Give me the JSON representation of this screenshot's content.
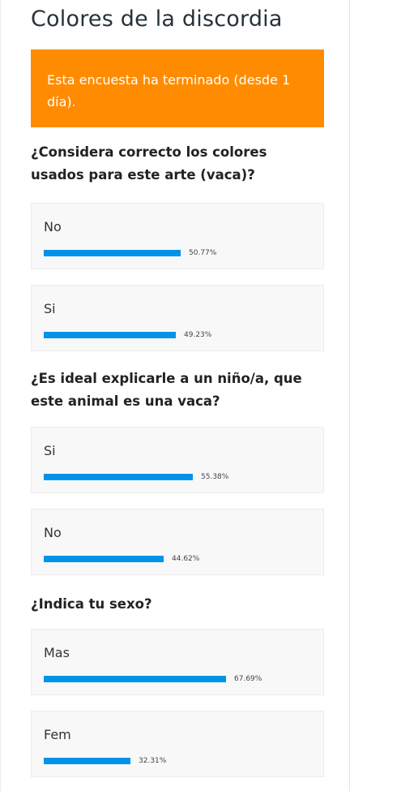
{
  "poll": {
    "title": "Colores de la discordia",
    "notice": "Esta encuesta ha terminado (desde 1 día).",
    "accent_color": "#ff8c00",
    "bar_color": "#0093e9"
  },
  "questions": [
    {
      "text": "¿Considera correcto los colores usados para este arte (vaca)?",
      "answers": [
        {
          "label": "No",
          "percent": 50.77,
          "percent_text": "50.77%"
        },
        {
          "label": "Si",
          "percent": 49.23,
          "percent_text": "49.23%"
        }
      ]
    },
    {
      "text": "¿Es ideal explicarle a un niño/a, que este animal es una vaca?",
      "answers": [
        {
          "label": "Si",
          "percent": 55.38,
          "percent_text": "55.38%"
        },
        {
          "label": "No",
          "percent": 44.62,
          "percent_text": "44.62%"
        }
      ]
    },
    {
      "text": "¿Indica tu sexo?",
      "answers": [
        {
          "label": "Mas",
          "percent": 67.69,
          "percent_text": "67.69%"
        },
        {
          "label": "Fem",
          "percent": 32.31,
          "percent_text": "32.31%"
        }
      ]
    }
  ]
}
